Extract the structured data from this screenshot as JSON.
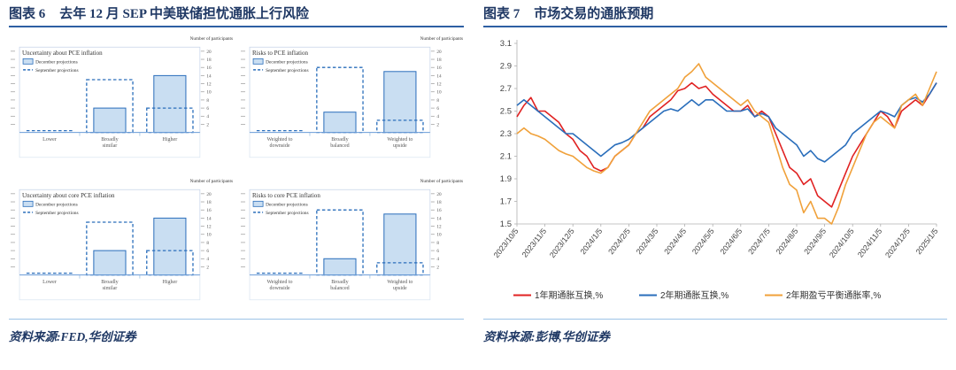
{
  "colors": {
    "navy": "#1f3864",
    "rule": "#2e5fa3",
    "divider": "#9dc3e6",
    "bar_fill": "#c9def2",
    "bar_stroke": "#2a6ebb",
    "axis": "#b0b0b0",
    "tick_text": "#555555",
    "label_text": "#595959"
  },
  "figure6": {
    "label": "图表 6",
    "title": "去年 12 月 SEP 中美联储担忧通胀上行风险",
    "source": "资料来源:FED,华创证券"
  },
  "figure7": {
    "label": "图表 7",
    "title": "市场交易的通胀预期",
    "source": "资料来源:彭博,华创证券"
  },
  "chart_data": [
    {
      "id": "uncertainty_pce",
      "type": "bar",
      "title": "Uncertainty about PCE inflation",
      "axis_note": "Number of participants",
      "categories": [
        "Lower",
        "Broadly similar",
        "Higher"
      ],
      "series": [
        {
          "name": "December projections",
          "style": "solid",
          "values": [
            0,
            6,
            14
          ]
        },
        {
          "name": "September projections",
          "style": "dashed",
          "values": [
            0,
            13,
            6
          ]
        }
      ],
      "ylim": [
        0,
        21
      ],
      "yticks": [
        2,
        4,
        6,
        8,
        10,
        12,
        14,
        16,
        18,
        20
      ]
    },
    {
      "id": "risks_pce",
      "type": "bar",
      "title": "Risks to PCE inflation",
      "axis_note": "Number of participants",
      "categories": [
        "Weighted to downside",
        "Broadly balanced",
        "Weighted to upside"
      ],
      "series": [
        {
          "name": "December projections",
          "style": "solid",
          "values": [
            0,
            5,
            15
          ]
        },
        {
          "name": "September projections",
          "style": "dashed",
          "values": [
            0,
            16,
            3
          ]
        }
      ],
      "ylim": [
        0,
        21
      ],
      "yticks": [
        2,
        4,
        6,
        8,
        10,
        12,
        14,
        16,
        18,
        20
      ]
    },
    {
      "id": "uncertainty_core_pce",
      "type": "bar",
      "title": "Uncertainty about core PCE inflation",
      "axis_note": "Number of participants",
      "categories": [
        "Lower",
        "Broadly similar",
        "Higher"
      ],
      "series": [
        {
          "name": "December projections",
          "style": "solid",
          "values": [
            0,
            6,
            14
          ]
        },
        {
          "name": "September projections",
          "style": "dashed",
          "values": [
            0,
            13,
            6
          ]
        }
      ],
      "ylim": [
        0,
        21
      ],
      "yticks": [
        2,
        4,
        6,
        8,
        10,
        12,
        14,
        16,
        18,
        20
      ]
    },
    {
      "id": "risks_core_pce",
      "type": "bar",
      "title": "Risks to core PCE inflation",
      "axis_note": "Number of participants",
      "categories": [
        "Weighted to downside",
        "Broadly balanced",
        "Weighted to upside"
      ],
      "series": [
        {
          "name": "December projections",
          "style": "solid",
          "values": [
            0,
            4,
            15
          ]
        },
        {
          "name": "September projections",
          "style": "dashed",
          "values": [
            0,
            16,
            3
          ]
        }
      ],
      "ylim": [
        0,
        21
      ],
      "yticks": [
        2,
        4,
        6,
        8,
        10,
        12,
        14,
        16,
        18,
        20
      ]
    },
    {
      "id": "inflation_expectations",
      "type": "line",
      "ylim": [
        1.5,
        3.1
      ],
      "yticks": [
        3.1,
        2.9,
        2.7,
        2.5,
        2.3,
        2.1,
        1.9,
        1.7,
        1.5
      ],
      "x_labels": [
        "2023/10/5",
        "2023/11/5",
        "2023/12/5",
        "2024/1/5",
        "2024/2/5",
        "2024/3/5",
        "2024/4/5",
        "2024/5/5",
        "2024/6/5",
        "2024/7/5",
        "2024/8/5",
        "2024/9/5",
        "2024/10/5",
        "2024/11/5",
        "2024/12/5",
        "2025/1/5"
      ],
      "points_per_tick": 4,
      "series": [
        {
          "name": "1年期通胀互换,%",
          "color": "#e02222",
          "values": [
            2.45,
            2.55,
            2.62,
            2.5,
            2.5,
            2.45,
            2.4,
            2.3,
            2.25,
            2.15,
            2.1,
            2.0,
            1.97,
            2.0,
            2.1,
            2.15,
            2.2,
            2.3,
            2.35,
            2.45,
            2.5,
            2.55,
            2.6,
            2.68,
            2.7,
            2.75,
            2.7,
            2.72,
            2.65,
            2.6,
            2.55,
            2.5,
            2.5,
            2.55,
            2.45,
            2.5,
            2.45,
            2.3,
            2.15,
            2.0,
            1.95,
            1.85,
            1.9,
            1.75,
            1.7,
            1.65,
            1.8,
            1.95,
            2.1,
            2.2,
            2.3,
            2.4,
            2.5,
            2.45,
            2.35,
            2.5,
            2.55,
            2.6,
            2.55,
            2.65,
            2.75
          ]
        },
        {
          "name": "2年期通胀互换,%",
          "color": "#2a6ebb",
          "values": [
            2.55,
            2.6,
            2.55,
            2.5,
            2.45,
            2.4,
            2.35,
            2.3,
            2.3,
            2.25,
            2.2,
            2.15,
            2.1,
            2.15,
            2.2,
            2.22,
            2.25,
            2.3,
            2.35,
            2.4,
            2.45,
            2.5,
            2.52,
            2.5,
            2.55,
            2.6,
            2.55,
            2.6,
            2.6,
            2.55,
            2.5,
            2.5,
            2.5,
            2.52,
            2.45,
            2.48,
            2.45,
            2.35,
            2.3,
            2.25,
            2.2,
            2.1,
            2.15,
            2.08,
            2.05,
            2.1,
            2.15,
            2.2,
            2.3,
            2.35,
            2.4,
            2.45,
            2.5,
            2.48,
            2.45,
            2.55,
            2.6,
            2.62,
            2.58,
            2.65,
            2.75
          ]
        },
        {
          "name": "2年期盈亏平衡通胀率,%",
          "color": "#f0a13a",
          "values": [
            2.3,
            2.35,
            2.3,
            2.28,
            2.25,
            2.2,
            2.15,
            2.12,
            2.1,
            2.05,
            2.0,
            1.97,
            1.95,
            2.0,
            2.1,
            2.15,
            2.2,
            2.3,
            2.4,
            2.5,
            2.55,
            2.6,
            2.65,
            2.7,
            2.8,
            2.85,
            2.92,
            2.8,
            2.75,
            2.7,
            2.65,
            2.6,
            2.55,
            2.6,
            2.5,
            2.45,
            2.4,
            2.2,
            2.0,
            1.85,
            1.8,
            1.6,
            1.7,
            1.55,
            1.55,
            1.5,
            1.65,
            1.85,
            2.0,
            2.15,
            2.3,
            2.4,
            2.45,
            2.4,
            2.35,
            2.55,
            2.6,
            2.65,
            2.55,
            2.7,
            2.85
          ]
        }
      ]
    }
  ]
}
